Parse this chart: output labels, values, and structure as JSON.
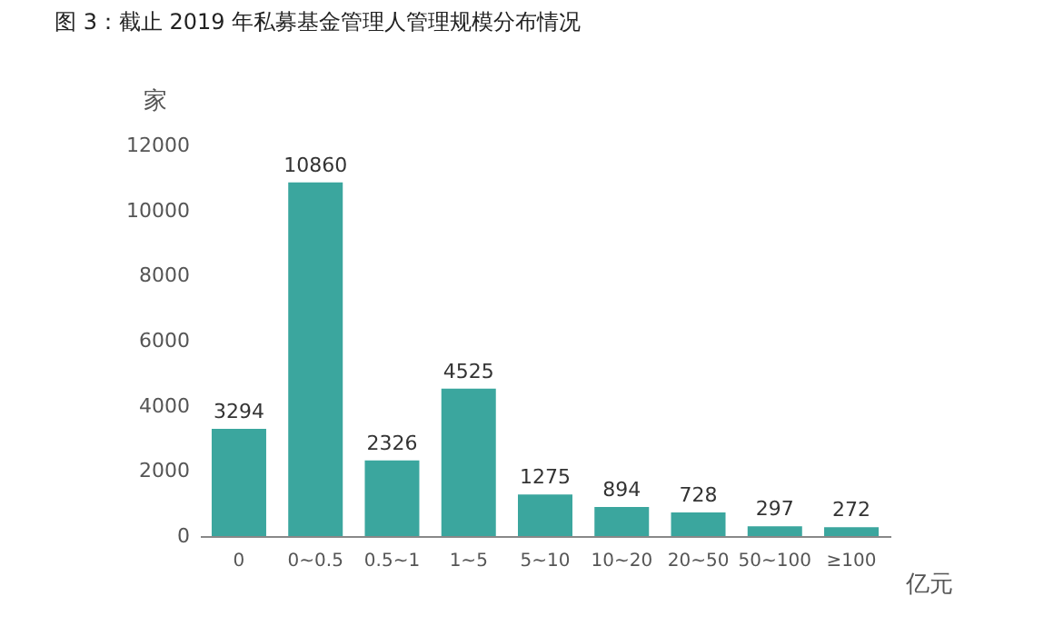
{
  "chart_data": {
    "type": "bar",
    "title": "图 3：截止 2019 年私募基金管理人管理规模分布情况",
    "xlabel": "亿元",
    "ylabel": "家",
    "categories": [
      "0",
      "0~0.5",
      "0.5~1",
      "1~5",
      "5~10",
      "10~20",
      "20~50",
      "50~100",
      "≥100"
    ],
    "values": [
      3294,
      10860,
      2326,
      4525,
      1275,
      894,
      728,
      297,
      272
    ],
    "color": "#3ba69e",
    "ylim": [
      0,
      12000
    ],
    "yticks": [
      0,
      2000,
      4000,
      6000,
      8000,
      10000,
      12000
    ],
    "grid": false,
    "data_labels": true
  }
}
